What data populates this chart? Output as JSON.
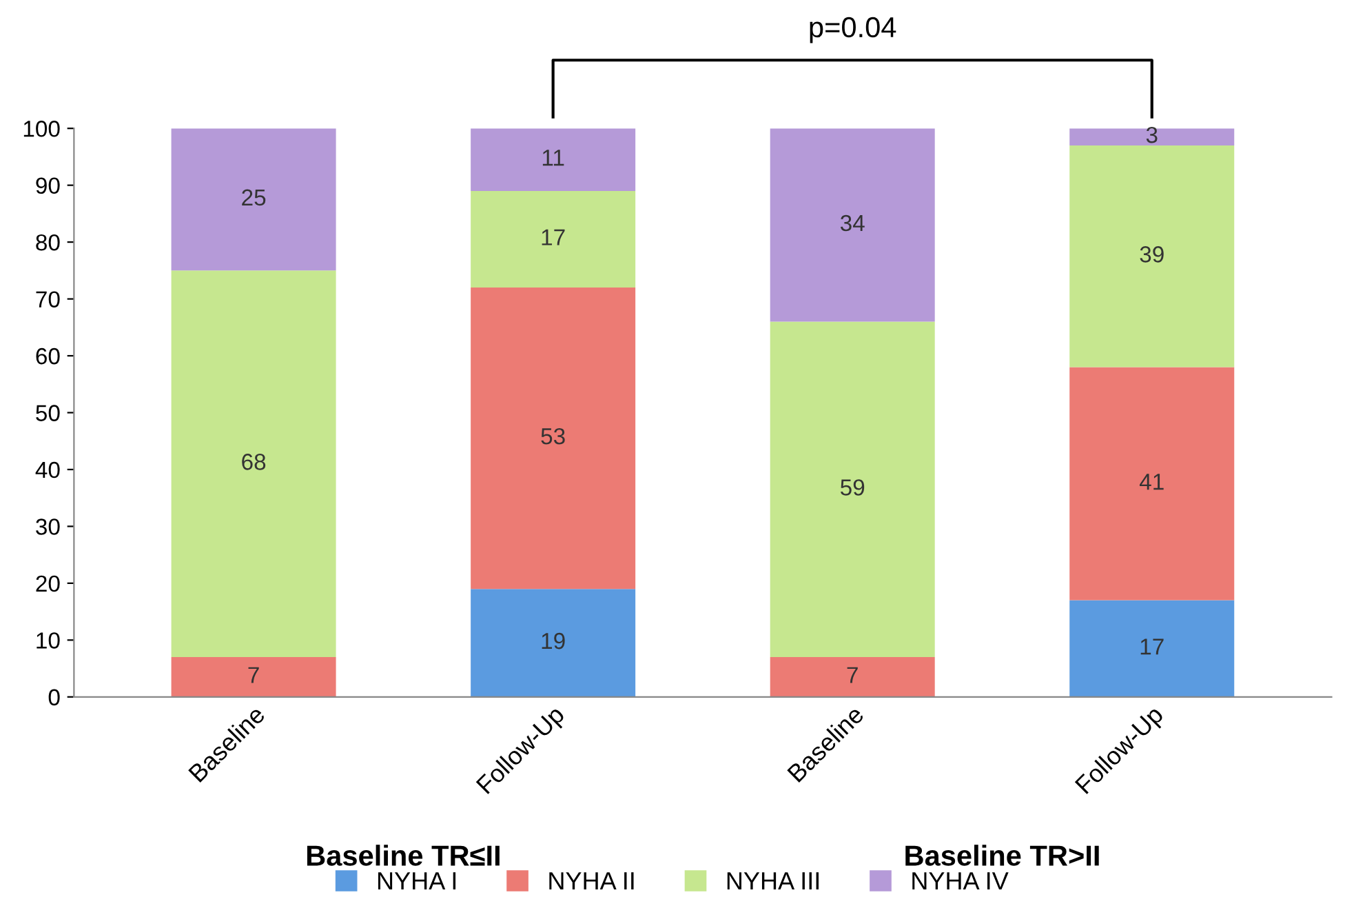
{
  "chart_data": {
    "type": "bar",
    "stacked": true,
    "categories": [
      "Baseline",
      "Follow-Up",
      "Baseline",
      "Follow-Up"
    ],
    "series": [
      {
        "name": "NYHA I",
        "color": "#5b9be0",
        "values": [
          0,
          19,
          0,
          17
        ],
        "value_labels": [
          null,
          "19",
          null,
          "17"
        ]
      },
      {
        "name": "NYHA II",
        "color": "#ec7b74",
        "values": [
          7,
          53,
          7,
          41
        ],
        "value_labels": [
          "7",
          "53",
          "7",
          "41"
        ]
      },
      {
        "name": "NYHA III",
        "color": "#c6e78f",
        "values": [
          68,
          17,
          59,
          39
        ],
        "value_labels": [
          "68",
          "17",
          "59",
          "39"
        ]
      },
      {
        "name": "NYHA IV",
        "color": "#b59ad8",
        "values": [
          25,
          11,
          34,
          3
        ],
        "value_labels": [
          "25",
          "11",
          "34",
          "3"
        ]
      }
    ],
    "ylim": [
      0,
      100
    ],
    "yticks": [
      0,
      10,
      20,
      30,
      40,
      50,
      60,
      70,
      80,
      90,
      100
    ],
    "legend": "bottom",
    "annotations": [
      "p=0.04",
      "Baseline TR≤II",
      "Baseline TR>II"
    ]
  }
}
